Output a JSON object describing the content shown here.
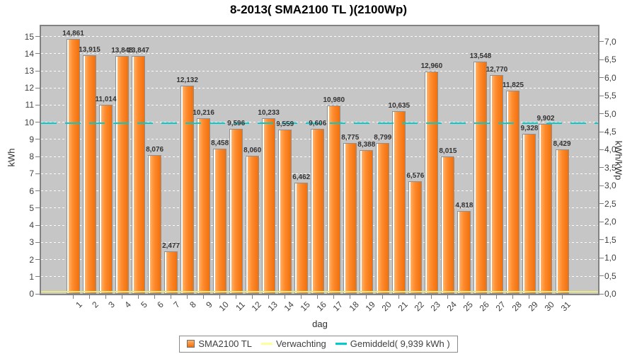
{
  "title": "8-2013( SMA2100 TL )(2100Wp)",
  "axes": {
    "left_title": "kWh",
    "right_title": "kWh/kWp",
    "x_title": "dag"
  },
  "legend": {
    "items": [
      {
        "id": "series",
        "label": "SMA2100 TL",
        "swatch": "square",
        "color": "#F4813E"
      },
      {
        "id": "verwachting",
        "label": "Verwachting",
        "swatch": "line",
        "color": "#FFFF99"
      },
      {
        "id": "gemiddeld",
        "label": "Gemiddeld( 9,939 kWh )",
        "swatch": "line",
        "color": "#00CCCC"
      }
    ]
  },
  "chart_data": {
    "type": "bar",
    "title": "8-2013( SMA2100 TL )(2100Wp)",
    "xlabel": "dag",
    "ylabel_left": "kWh",
    "ylabel_right": "kWh/kWp",
    "categories": [
      1,
      2,
      3,
      4,
      5,
      6,
      7,
      8,
      9,
      10,
      11,
      12,
      13,
      14,
      15,
      16,
      17,
      18,
      19,
      20,
      21,
      22,
      23,
      24,
      25,
      26,
      27,
      28,
      29,
      30,
      31
    ],
    "series": [
      {
        "name": "SMA2100 TL",
        "unit": "kWh",
        "values": [
          14.861,
          13.915,
          11.014,
          13.848,
          13.847,
          8.076,
          2.477,
          12.132,
          10.216,
          8.458,
          9.596,
          8.06,
          10.233,
          9.559,
          6.462,
          9.606,
          10.98,
          8.775,
          8.388,
          8.799,
          10.635,
          6.576,
          12.96,
          8.015,
          4.818,
          13.548,
          12.77,
          11.825,
          9.328,
          9.902,
          8.429
        ]
      }
    ],
    "value_labels": [
      "14,861",
      "13,915",
      "11,014",
      "13,848",
      "13,847",
      "8,076",
      "2,477",
      "12,132",
      "10,216",
      "8,458",
      "9,596",
      "8,060",
      "10,233",
      "9,559",
      "6,462",
      "9,606",
      "10,980",
      "8,775",
      "8,388",
      "8,799",
      "10,635",
      "6,576",
      "12,960",
      "8,015",
      "4,818",
      "13,548",
      "12,770",
      "11,825",
      "9,328",
      "9,902",
      "8,429"
    ],
    "reference_lines": [
      {
        "name": "Gemiddeld",
        "value": 9.939,
        "unit": "kWh",
        "style": "dashed",
        "color": "#00CCCC"
      },
      {
        "name": "Verwachting",
        "value": 0.1,
        "unit": "kWh",
        "style": "solid",
        "color": "#E9E97E"
      }
    ],
    "ylim_left": [
      0,
      15.6
    ],
    "yticks_left": [
      0,
      1,
      2,
      3,
      4,
      5,
      6,
      7,
      8,
      9,
      10,
      11,
      12,
      13,
      14,
      15
    ],
    "ylim_right": [
      0,
      7.43
    ],
    "yticks_right": [
      "0,0",
      "0,5",
      "1,0",
      "1,5",
      "2,0",
      "2,5",
      "3,0",
      "3,5",
      "4,0",
      "4,5",
      "5,0",
      "5,5",
      "6,0",
      "6,5",
      "7,0"
    ],
    "right_axis_kwh_per_unit": 2.1,
    "grid": true,
    "legend_position": "bottom",
    "decimal_separator": ","
  },
  "colors": {
    "plot_bg": "#C6C6C6",
    "plot_border": "#828282",
    "grid": "#FFFFFF",
    "bar_highlight": "#FFFFFF",
    "bar_light": "#FFB169",
    "bar_mid": "#FF8C2E",
    "bar_dark": "#F0700C",
    "bar_border": "#8F8F8F",
    "avg_line": "#00CCCC",
    "expect_line": "#E9E97E",
    "value_label": "#333333",
    "title": "#000000"
  }
}
